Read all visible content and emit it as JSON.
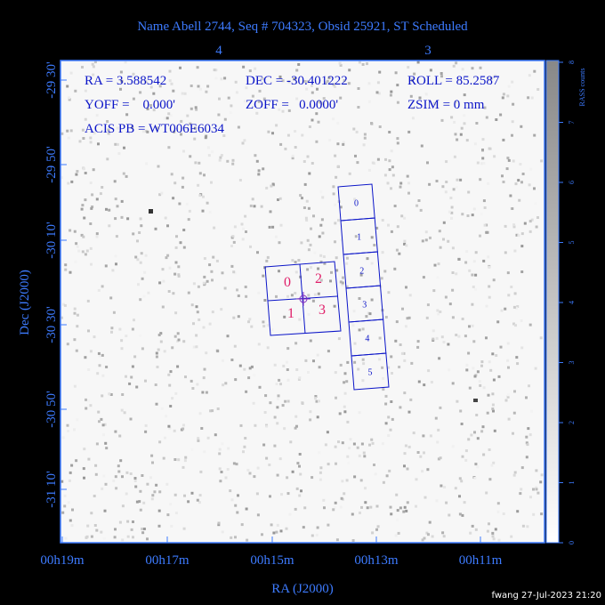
{
  "title": "Name Abell 2744, Seq # 704323, Obsid 25921, ST Scheduled",
  "top_ticks": [
    "4",
    "3"
  ],
  "ra_ticks": [
    "00h19m",
    "00h17m",
    "00h15m",
    "00h13m",
    "00h11m"
  ],
  "dec_ticks": [
    "-29 30'",
    "-29 50'",
    "-30 10'",
    "-30 30'",
    "-30 50'",
    "-31 10'"
  ],
  "x_label": "RA (J2000)",
  "y_label": "Dec (J2000)",
  "colorbar": {
    "label": "RASS counts",
    "ticks": [
      "0",
      "1",
      "2",
      "3",
      "4",
      "5",
      "6",
      "7",
      "8"
    ]
  },
  "info": [
    [
      "RA = 3.588542",
      "DEC = -30.401222",
      "ROLL = 85.2587"
    ],
    [
      "YOFF =    0.000'",
      "ZOFF =   0.0000'",
      "ZSIM = 0 mm"
    ],
    [
      "ACIS PB = WT006E6034"
    ]
  ],
  "acis_i_labels": [
    "0",
    "1",
    "2",
    "3"
  ],
  "acis_s_labels": [
    "0",
    "1",
    "2",
    "3",
    "4",
    "5"
  ],
  "footer": "fwang 27-Jul-2023 21:20"
}
